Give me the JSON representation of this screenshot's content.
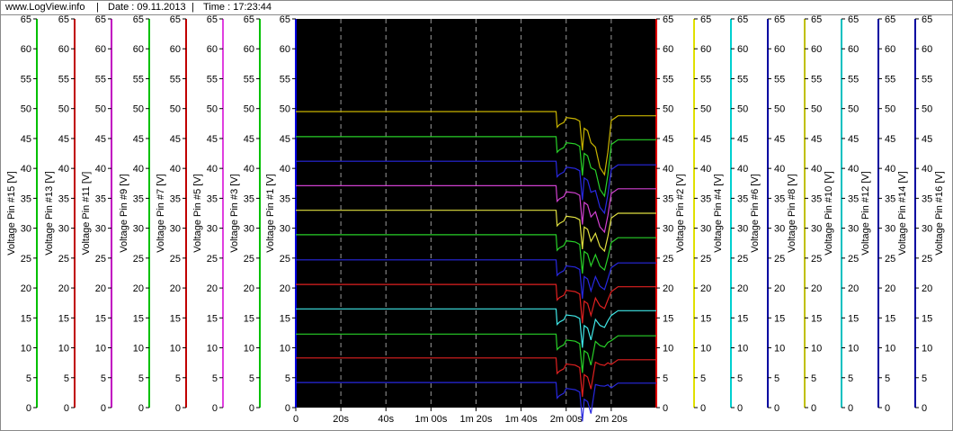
{
  "header": {
    "site": "www.LogView.info",
    "date": "Date : 09.11.2013",
    "time": "Time : 17:23:44",
    "separator": "|"
  },
  "chart_data": {
    "type": "line",
    "background": "#000000",
    "grid": "vertical dashed",
    "x_tick_labels": [
      "0",
      "20s",
      "40s",
      "1m 00s",
      "1m 20s",
      "1m 40s",
      "2m 00s",
      "2m 20s"
    ],
    "x_tick_seconds": [
      0,
      20,
      40,
      60,
      80,
      100,
      120,
      140
    ],
    "xlim": [
      0,
      160
    ],
    "ylim": [
      0,
      65
    ],
    "y_ticks": [
      0,
      5,
      10,
      15,
      20,
      25,
      30,
      35,
      40,
      45,
      50,
      55,
      60,
      65
    ],
    "left_axes": [
      {
        "label": "Voltage Pin #15 [V]",
        "color": "#00c000"
      },
      {
        "label": "Voltage Pin #13 [V]",
        "color": "#c00000"
      },
      {
        "label": "Voltage Pin #11 [V]",
        "color": "#c000c0"
      },
      {
        "label": "Voltage Pin #9 [V]",
        "color": "#00c000"
      },
      {
        "label": "Voltage Pin #7 [V]",
        "color": "#c00000"
      },
      {
        "label": "Voltage Pin #5 [V]",
        "color": "#e040e0"
      },
      {
        "label": "Voltage Pin #3 [V]",
        "color": "#00c000"
      }
    ],
    "plot_left_axis": {
      "label": "Voltage Pin #1 [V]",
      "color": "#0000e0"
    },
    "plot_right_axis": {
      "label": "Voltage Pin #2 [V]",
      "color": "#e00000"
    },
    "right_axes": [
      {
        "label": "Voltage Pin #2 [V]",
        "color": "#e0e000"
      },
      {
        "label": "Voltage Pin #4 [V]",
        "color": "#00d0d0"
      },
      {
        "label": "Voltage Pin #6 [V]",
        "color": "#0000a0"
      },
      {
        "label": "Voltage Pin #8 [V]",
        "color": "#c0c000"
      },
      {
        "label": "Voltage Pin #10 [V]",
        "color": "#00c0c0"
      },
      {
        "label": "Voltage Pin #12 [V]",
        "color": "#0000a0"
      },
      {
        "label": "Voltage Pin #14 [V]",
        "color": "#0000a0"
      },
      {
        "label": "Voltage Pin #16 [V]",
        "color": "#a0a000"
      }
    ],
    "series": [
      {
        "color": "#c8b400",
        "level": 49.5,
        "dip": 17.0,
        "end": 48.8
      },
      {
        "color": "#28d028",
        "level": 45.3,
        "dip": 16.0,
        "end": 44.8
      },
      {
        "color": "#2828e0",
        "level": 41.2,
        "dip": 14.0,
        "end": 40.6
      },
      {
        "color": "#d040d0",
        "level": 37.1,
        "dip": 12.5,
        "end": 36.6
      },
      {
        "color": "#e0e040",
        "level": 33.0,
        "dip": 11.0,
        "end": 32.5
      },
      {
        "color": "#28d028",
        "level": 28.9,
        "dip": 9.5,
        "end": 28.4
      },
      {
        "color": "#2828e0",
        "level": 24.7,
        "dip": 8.0,
        "end": 24.2
      },
      {
        "color": "#e02020",
        "level": 20.6,
        "dip": 6.5,
        "end": 20.2
      },
      {
        "color": "#40e8e8",
        "level": 16.5,
        "dip": 5.0,
        "end": 16.2
      },
      {
        "color": "#28d028",
        "level": 12.3,
        "dip": 3.5,
        "end": 12.0
      },
      {
        "color": "#e02020",
        "level": 8.3,
        "dip": 2.0,
        "end": 8.0
      },
      {
        "color": "#2828e0",
        "level": 4.2,
        "dip": 1.0,
        "end": 4.1
      }
    ]
  }
}
